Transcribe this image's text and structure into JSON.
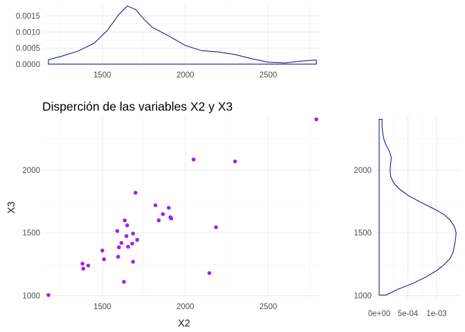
{
  "colors": {
    "points": "#a020f0",
    "density_line": "#00008b",
    "grid": "#ebebeb"
  },
  "chart_data": [
    {
      "type": "scatter",
      "title": "Disperción de las variables X2 y X3",
      "xlabel": "X2",
      "ylabel": "X3",
      "xlim": [
        1150,
        2810
      ],
      "ylim": [
        975,
        2430
      ],
      "xticks": [
        1500,
        2000,
        2500
      ],
      "yticks": [
        1000,
        1500,
        2000
      ],
      "grid": true,
      "points": [
        {
          "x": 1175,
          "y": 1005
        },
        {
          "x": 1380,
          "y": 1255
        },
        {
          "x": 1385,
          "y": 1215
        },
        {
          "x": 1415,
          "y": 1240
        },
        {
          "x": 1500,
          "y": 1360
        },
        {
          "x": 1510,
          "y": 1290
        },
        {
          "x": 1590,
          "y": 1515
        },
        {
          "x": 1595,
          "y": 1310
        },
        {
          "x": 1600,
          "y": 1385
        },
        {
          "x": 1615,
          "y": 1420
        },
        {
          "x": 1630,
          "y": 1110
        },
        {
          "x": 1635,
          "y": 1600
        },
        {
          "x": 1645,
          "y": 1475
        },
        {
          "x": 1650,
          "y": 1560
        },
        {
          "x": 1655,
          "y": 1390
        },
        {
          "x": 1680,
          "y": 1415
        },
        {
          "x": 1685,
          "y": 1495
        },
        {
          "x": 1685,
          "y": 1270
        },
        {
          "x": 1700,
          "y": 1820
        },
        {
          "x": 1710,
          "y": 1445
        },
        {
          "x": 1820,
          "y": 1720
        },
        {
          "x": 1840,
          "y": 1600
        },
        {
          "x": 1865,
          "y": 1650
        },
        {
          "x": 1900,
          "y": 1700
        },
        {
          "x": 1910,
          "y": 1625
        },
        {
          "x": 1915,
          "y": 1615
        },
        {
          "x": 2050,
          "y": 2085
        },
        {
          "x": 2145,
          "y": 1180
        },
        {
          "x": 2185,
          "y": 1545
        },
        {
          "x": 2300,
          "y": 2070
        },
        {
          "x": 2790,
          "y": 2405
        }
      ]
    },
    {
      "type": "area",
      "variable": "X2",
      "xlim": [
        1150,
        2810
      ],
      "ylim": [
        -9e-05,
        0.00193
      ],
      "xticks": [
        1500,
        2000,
        2500
      ],
      "yticks": [
        "0.0000",
        "0.0005",
        "0.0010",
        "0.0015"
      ],
      "ytick_values": [
        0,
        0.0005,
        0.001,
        0.0015
      ],
      "density": [
        {
          "x": 1175,
          "y": 0.0
        },
        {
          "x": 1175,
          "y": 0.00014
        },
        {
          "x": 1250,
          "y": 0.00024
        },
        {
          "x": 1350,
          "y": 0.0004
        },
        {
          "x": 1450,
          "y": 0.00065
        },
        {
          "x": 1530,
          "y": 0.00105
        },
        {
          "x": 1600,
          "y": 0.00155
        },
        {
          "x": 1650,
          "y": 0.00181
        },
        {
          "x": 1700,
          "y": 0.0017
        },
        {
          "x": 1750,
          "y": 0.0014
        },
        {
          "x": 1800,
          "y": 0.00115
        },
        {
          "x": 1900,
          "y": 0.00088
        },
        {
          "x": 2000,
          "y": 0.00058
        },
        {
          "x": 2100,
          "y": 0.00042
        },
        {
          "x": 2200,
          "y": 0.00038
        },
        {
          "x": 2300,
          "y": 0.0003
        },
        {
          "x": 2400,
          "y": 0.00017
        },
        {
          "x": 2500,
          "y": 6e-05
        },
        {
          "x": 2600,
          "y": 4e-05
        },
        {
          "x": 2700,
          "y": 0.0001
        },
        {
          "x": 2790,
          "y": 0.00013
        },
        {
          "x": 2790,
          "y": 0.0
        }
      ]
    },
    {
      "type": "area",
      "variable": "X3",
      "orientation": "horizontal",
      "xlim": [
        -6e-05,
        0.00141
      ],
      "ylim": [
        975,
        2430
      ],
      "xticks": [
        "0e+00",
        "5e-04",
        "1e-03"
      ],
      "xtick_values": [
        0,
        0.0005,
        0.001
      ],
      "yticks": [
        1000,
        1500,
        2000
      ],
      "density": [
        {
          "y": 1005,
          "x": 0.0
        },
        {
          "y": 1005,
          "x": 0.00012
        },
        {
          "y": 1050,
          "x": 0.00032
        },
        {
          "y": 1100,
          "x": 0.0006
        },
        {
          "y": 1150,
          "x": 0.00082
        },
        {
          "y": 1200,
          "x": 0.001
        },
        {
          "y": 1250,
          "x": 0.00114
        },
        {
          "y": 1300,
          "x": 0.00124
        },
        {
          "y": 1350,
          "x": 0.00129
        },
        {
          "y": 1400,
          "x": 0.00131
        },
        {
          "y": 1450,
          "x": 0.00133
        },
        {
          "y": 1500,
          "x": 0.00134
        },
        {
          "y": 1550,
          "x": 0.00131
        },
        {
          "y": 1600,
          "x": 0.00124
        },
        {
          "y": 1650,
          "x": 0.00112
        },
        {
          "y": 1700,
          "x": 0.00092
        },
        {
          "y": 1750,
          "x": 0.0007
        },
        {
          "y": 1800,
          "x": 0.0005
        },
        {
          "y": 1850,
          "x": 0.00035
        },
        {
          "y": 1900,
          "x": 0.00025
        },
        {
          "y": 1950,
          "x": 0.0002
        },
        {
          "y": 2000,
          "x": 0.00019
        },
        {
          "y": 2050,
          "x": 0.0002
        },
        {
          "y": 2100,
          "x": 0.00021
        },
        {
          "y": 2150,
          "x": 0.00018
        },
        {
          "y": 2200,
          "x": 0.00012
        },
        {
          "y": 2250,
          "x": 8e-05
        },
        {
          "y": 2300,
          "x": 6e-05
        },
        {
          "y": 2350,
          "x": 5e-05
        },
        {
          "y": 2405,
          "x": 5e-05
        },
        {
          "y": 2405,
          "x": 0.0
        }
      ]
    }
  ]
}
